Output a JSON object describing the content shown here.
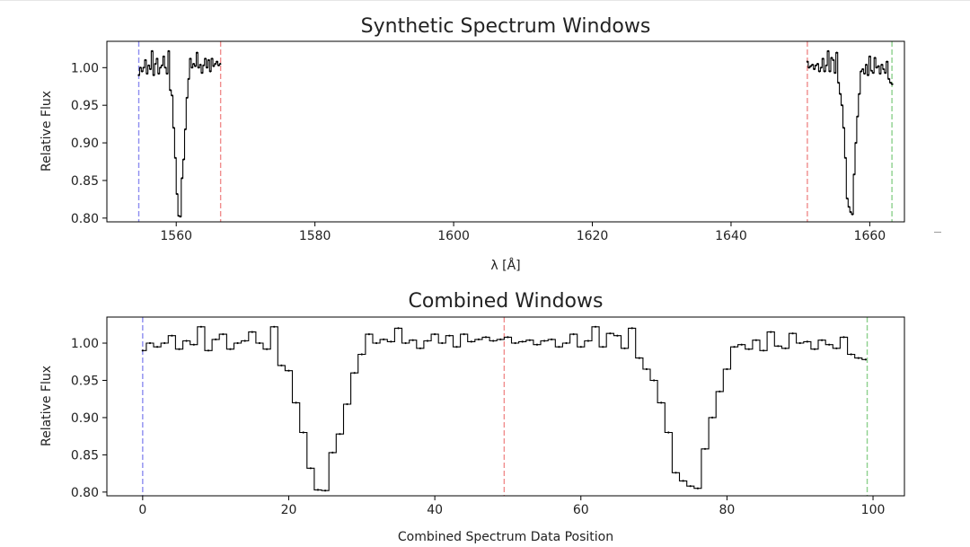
{
  "colors": {
    "line": "#000000",
    "axis": "#000000",
    "blue_dash": "#8c8cf0",
    "red_dash": "#f08c8c",
    "green_dash": "#8cd08c"
  },
  "chart_data": [
    {
      "type": "line",
      "title": "Synthetic Spectrum Windows",
      "xlabel": "λ [Å]",
      "ylabel": "Relative Flux",
      "xlim": [
        1550,
        1665
      ],
      "ylim": [
        0.795,
        1.035
      ],
      "xticks": [
        1560,
        1580,
        1600,
        1620,
        1640,
        1660
      ],
      "xtick_labels": [
        "1560",
        "1580",
        "1600",
        "1620",
        "1640",
        "1660"
      ],
      "yticks": [
        0.8,
        0.85,
        0.9,
        0.95,
        1.0
      ],
      "ytick_labels": [
        "0.80",
        "0.85",
        "0.90",
        "0.95",
        "1.00"
      ],
      "grid": false,
      "legend": "none",
      "step": "mid",
      "vlines": [
        {
          "x": 1554.6,
          "color": "blue"
        },
        {
          "x": 1566.4,
          "color": "red"
        },
        {
          "x": 1651.0,
          "color": "red"
        },
        {
          "x": 1663.2,
          "color": "green"
        }
      ],
      "series": [
        {
          "segments": [
            {
              "x": [
                1554.6,
                1554.84,
                1555.08,
                1555.32,
                1555.56,
                1555.8,
                1556.04,
                1556.28,
                1556.52,
                1556.76,
                1557.0,
                1557.24,
                1557.48,
                1557.72,
                1557.96,
                1558.2,
                1558.44,
                1558.68,
                1558.92,
                1559.16,
                1559.4,
                1559.64,
                1559.88,
                1560.12,
                1560.36,
                1560.6,
                1560.84,
                1561.08,
                1561.32,
                1561.56,
                1561.8,
                1562.04,
                1562.28,
                1562.52,
                1562.76,
                1563.0,
                1563.24,
                1563.48,
                1563.72,
                1563.96,
                1564.2,
                1564.44,
                1564.68,
                1564.92,
                1565.16,
                1565.4,
                1565.64,
                1565.88,
                1566.12,
                1566.36
              ],
              "y": [
                0.99,
                1.0,
                0.995,
                1.0,
                1.01,
                0.992,
                1.003,
                0.998,
                1.022,
                0.99,
                1.005,
                1.012,
                0.992,
                1.0,
                1.003,
                1.015,
                1.0,
                0.992,
                1.022,
                0.97,
                0.963,
                0.92,
                0.88,
                0.832,
                0.803,
                0.802,
                0.853,
                0.878,
                0.918,
                0.96,
                0.985,
                1.012,
                1.0,
                1.005,
                1.002,
                1.02,
                1.0,
                1.004,
                0.993,
                1.003,
                1.012,
                1.0,
                1.01,
                0.995,
                1.012,
                1.002,
                1.005,
                1.008,
                1.003,
                1.005
              ]
            },
            {
              "x": [
                1651.0,
                1651.25,
                1651.5,
                1651.75,
                1652.0,
                1652.25,
                1652.5,
                1652.75,
                1653.0,
                1653.25,
                1653.5,
                1653.75,
                1654.0,
                1654.25,
                1654.5,
                1654.75,
                1655.0,
                1655.25,
                1655.5,
                1655.75,
                1656.0,
                1656.25,
                1656.5,
                1656.75,
                1657.0,
                1657.25,
                1657.5,
                1657.75,
                1658.0,
                1658.25,
                1658.5,
                1658.75,
                1659.0,
                1659.25,
                1659.5,
                1659.75,
                1660.0,
                1660.25,
                1660.5,
                1660.75,
                1661.0,
                1661.25,
                1661.5,
                1661.75,
                1662.0,
                1662.25,
                1662.5,
                1662.75,
                1663.0,
                1663.25
              ],
              "y": [
                1.008,
                1.0,
                1.002,
                1.004,
                0.998,
                1.003,
                1.005,
                0.995,
                1.0,
                1.012,
                0.995,
                1.003,
                1.022,
                0.995,
                1.013,
                1.01,
                0.993,
                1.02,
                0.98,
                0.965,
                0.95,
                0.92,
                0.88,
                0.826,
                0.815,
                0.808,
                0.805,
                0.858,
                0.9,
                0.935,
                0.965,
                0.995,
                0.998,
                0.992,
                1.004,
                0.99,
                1.015,
                0.996,
                0.993,
                1.013,
                1.0,
                1.002,
                0.992,
                1.004,
                0.998,
                0.993,
                1.008,
                0.985,
                0.98,
                0.978
              ]
            }
          ]
        }
      ]
    },
    {
      "type": "line",
      "title": "Combined Windows",
      "xlabel": "Combined Spectrum Data Position",
      "ylabel": "Relative Flux",
      "xlim": [
        -4.9,
        104.3
      ],
      "ylim": [
        0.795,
        1.035
      ],
      "xticks": [
        0,
        20,
        40,
        60,
        80,
        100
      ],
      "xtick_labels": [
        "0",
        "20",
        "40",
        "60",
        "80",
        "100"
      ],
      "yticks": [
        0.8,
        0.85,
        0.9,
        0.95,
        1.0
      ],
      "ytick_labels": [
        "0.80",
        "0.85",
        "0.90",
        "0.95",
        "1.00"
      ],
      "grid": false,
      "legend": "none",
      "step": "mid",
      "vlines": [
        {
          "x": 0,
          "color": "blue"
        },
        {
          "x": 49.5,
          "color": "red"
        },
        {
          "x": 99.2,
          "color": "green"
        }
      ],
      "series": [
        {
          "x": [
            0,
            1,
            2,
            3,
            4,
            5,
            6,
            7,
            8,
            9,
            10,
            11,
            12,
            13,
            14,
            15,
            16,
            17,
            18,
            19,
            20,
            21,
            22,
            23,
            24,
            25,
            26,
            27,
            28,
            29,
            30,
            31,
            32,
            33,
            34,
            35,
            36,
            37,
            38,
            39,
            40,
            41,
            42,
            43,
            44,
            45,
            46,
            47,
            48,
            49,
            50,
            51,
            52,
            53,
            54,
            55,
            56,
            57,
            58,
            59,
            60,
            61,
            62,
            63,
            64,
            65,
            66,
            67,
            68,
            69,
            70,
            71,
            72,
            73,
            74,
            75,
            76,
            77,
            78,
            79,
            80,
            81,
            82,
            83,
            84,
            85,
            86,
            87,
            88,
            89,
            90,
            91,
            92,
            93,
            94,
            95,
            96,
            97,
            98,
            99
          ],
          "y": [
            0.99,
            1.0,
            0.995,
            1.0,
            1.01,
            0.992,
            1.003,
            0.998,
            1.022,
            0.99,
            1.005,
            1.012,
            0.992,
            1.0,
            1.003,
            1.015,
            1.0,
            0.992,
            1.022,
            0.97,
            0.963,
            0.92,
            0.88,
            0.832,
            0.803,
            0.802,
            0.853,
            0.878,
            0.918,
            0.96,
            0.985,
            1.012,
            1.0,
            1.005,
            1.002,
            1.02,
            1.0,
            1.004,
            0.993,
            1.003,
            1.012,
            1.0,
            1.01,
            0.995,
            1.012,
            1.002,
            1.005,
            1.008,
            1.003,
            1.005,
            1.008,
            1.0,
            1.002,
            1.004,
            0.998,
            1.003,
            1.005,
            0.995,
            1.0,
            1.012,
            0.995,
            1.003,
            1.022,
            0.995,
            1.013,
            1.01,
            0.993,
            1.02,
            0.98,
            0.965,
            0.95,
            0.92,
            0.88,
            0.826,
            0.815,
            0.808,
            0.805,
            0.858,
            0.9,
            0.935,
            0.965,
            0.995,
            0.998,
            0.992,
            1.004,
            0.99,
            1.015,
            0.996,
            0.993,
            1.013,
            1.0,
            1.002,
            0.992,
            1.004,
            0.998,
            0.993,
            1.008,
            0.985,
            0.98,
            0.978
          ]
        }
      ]
    }
  ]
}
